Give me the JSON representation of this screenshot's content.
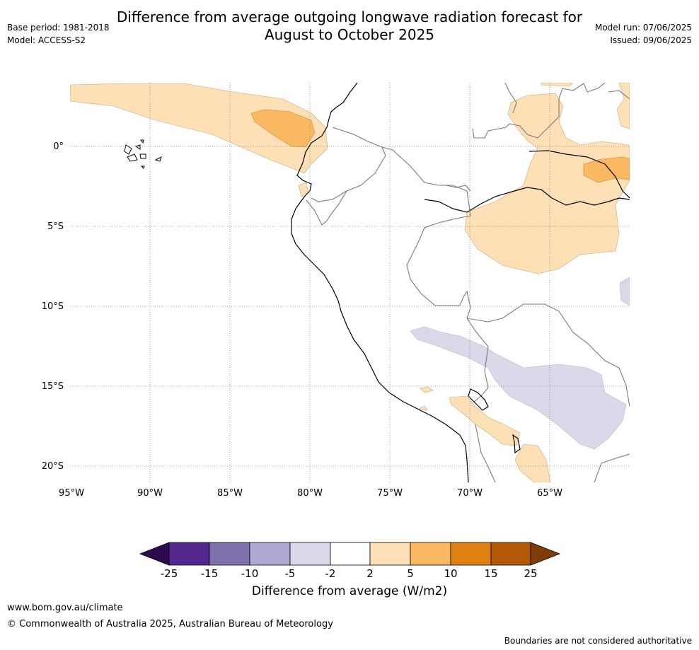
{
  "title_line1": "Difference from average outgoing longwave radiation forecast for",
  "title_line2": "August to October 2025",
  "base_period": "Base period: 1981-2018",
  "model": "Model: ACCESS-S2",
  "model_run": "Model run: 07/06/2025",
  "issued": "Issued: 09/06/2025",
  "lon_ticks": [
    "95°W",
    "90°W",
    "85°W",
    "80°W",
    "75°W",
    "70°W",
    "65°W"
  ],
  "lat_ticks": [
    "0°",
    "5°S",
    "10°S",
    "15°S",
    "20°S"
  ],
  "colorbar": {
    "ticks": [
      "-25",
      "-15",
      "-10",
      "-5",
      "-2",
      "2",
      "5",
      "10",
      "15",
      "25"
    ],
    "colors": [
      "#2d0a4e",
      "#54278f",
      "#7e70ad",
      "#b0a8d3",
      "#d9d9ea",
      "#ffffff",
      "#fde0b5",
      "#fbb862",
      "#e08213",
      "#b35806",
      "#7f3b08"
    ],
    "label": "Difference from average (W/m2)"
  },
  "footer": {
    "url": "www.bom.gov.au/climate",
    "copyright": "© Commonwealth of Australia 2025, Australian Bureau of Meteorology",
    "note": "Boundaries are not considered authoritative"
  }
}
